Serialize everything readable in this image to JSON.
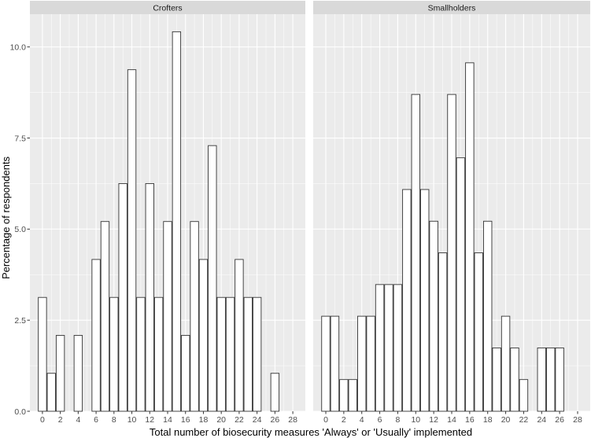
{
  "chart_data": {
    "type": "bar",
    "xlabel": "Total number of biosecurity measures 'Always' or 'Usually' implemented",
    "ylabel": "Percentage of respondents",
    "ylim": [
      0,
      10.9
    ],
    "xlim": [
      -1.4,
      29.4
    ],
    "x_ticks": [
      0,
      2,
      4,
      6,
      8,
      10,
      12,
      14,
      16,
      18,
      20,
      22,
      24,
      26,
      28
    ],
    "y_ticks": [
      0.0,
      2.5,
      5.0,
      7.5,
      10.0
    ],
    "y_tick_labels": [
      "0.0",
      "2.5",
      "5.0",
      "7.5",
      "10.0"
    ],
    "grid": true,
    "colors": {
      "panel_bg": "#ebebeb",
      "strip_bg": "#d9d9d9",
      "bar_fill": "#ffffff",
      "bar_outline": "#333333",
      "grid_major": "#ffffff"
    },
    "x": [
      0,
      1,
      2,
      3,
      4,
      5,
      6,
      7,
      8,
      9,
      10,
      11,
      12,
      13,
      14,
      15,
      16,
      17,
      18,
      19,
      20,
      21,
      22,
      23,
      24,
      25,
      26,
      27,
      28
    ],
    "series": [
      {
        "name": "Crofters",
        "values": [
          3.125,
          1.042,
          2.083,
          0,
          2.083,
          0,
          4.167,
          5.208,
          3.125,
          6.25,
          9.375,
          3.125,
          6.25,
          3.125,
          5.208,
          10.417,
          2.083,
          5.208,
          4.167,
          7.292,
          3.125,
          3.125,
          4.167,
          3.125,
          3.125,
          0,
          1.042,
          0,
          0
        ]
      },
      {
        "name": "Smallholders",
        "values": [
          2.609,
          2.609,
          0.87,
          0.87,
          2.609,
          2.609,
          3.478,
          3.478,
          3.478,
          6.087,
          8.696,
          6.087,
          5.217,
          4.348,
          8.696,
          6.957,
          9.565,
          4.348,
          5.217,
          1.739,
          2.609,
          1.739,
          0.87,
          0,
          1.739,
          1.739,
          1.739,
          0,
          0
        ]
      }
    ]
  }
}
